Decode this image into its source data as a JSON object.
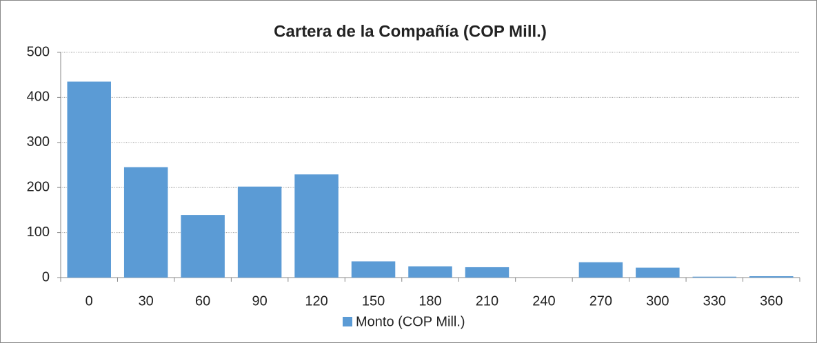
{
  "chart_data": {
    "type": "bar",
    "title": "Cartera de la Compañía (COP Mill.)",
    "categories": [
      "0",
      "30",
      "60",
      "90",
      "120",
      "150",
      "180",
      "210",
      "240",
      "270",
      "300",
      "330",
      "360"
    ],
    "series": [
      {
        "name": "Monto (COP Mill.)",
        "color": "#5b9bd5",
        "values": [
          435,
          245,
          139,
          202,
          229,
          36,
          25,
          23,
          0,
          34,
          22,
          2,
          3
        ]
      }
    ],
    "ylim": [
      0,
      500
    ],
    "yticks": [
      0,
      100,
      200,
      300,
      400,
      500
    ],
    "grid": true,
    "legend": "bottom"
  }
}
